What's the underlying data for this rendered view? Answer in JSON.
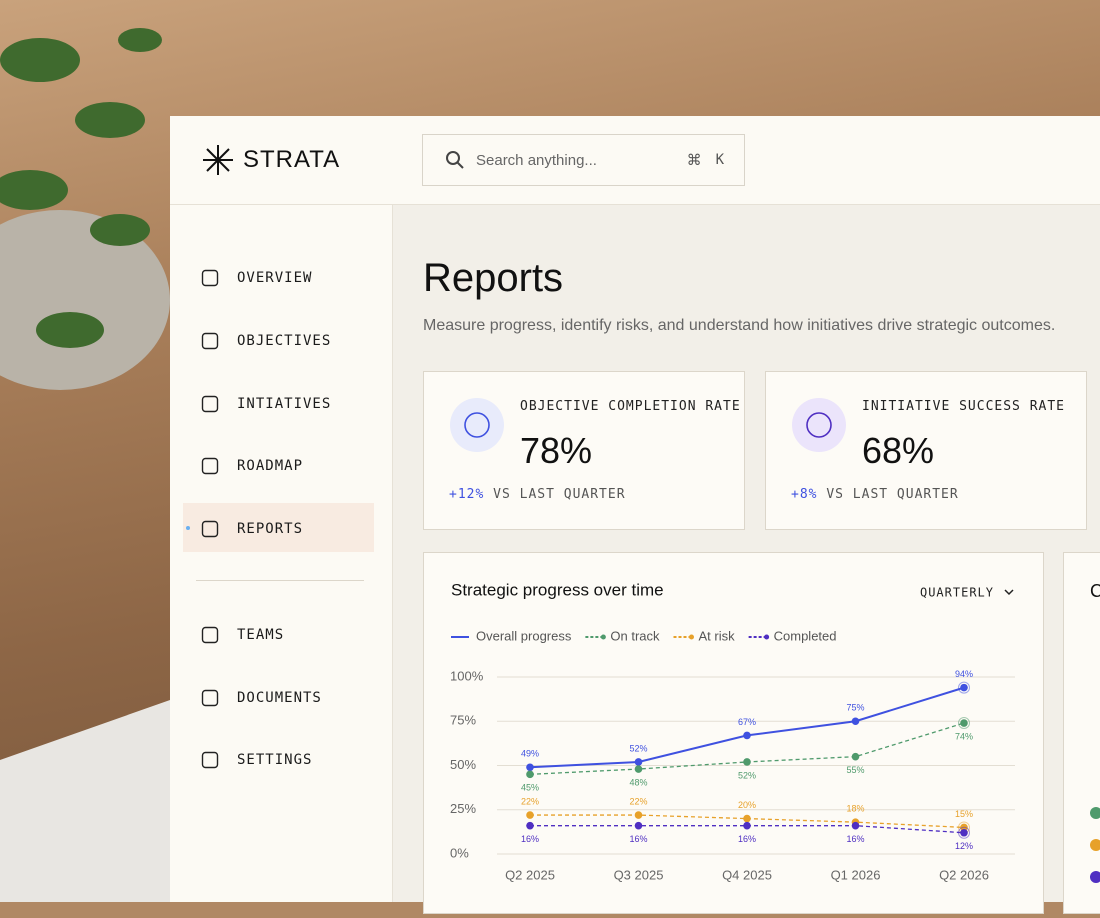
{
  "brand": "STRATA",
  "search": {
    "placeholder": "Search anything...",
    "shortcut_symbol": "⌘",
    "shortcut_key": "K"
  },
  "nav": [
    "OVERVIEW",
    "OBJECTIVES",
    "INTIATIVES",
    "ROADMAP",
    "REPORTS",
    "TEAMS",
    "DOCUMENTS",
    "SETTINGS"
  ],
  "active_nav": "REPORTS",
  "header": {
    "title": "Reports",
    "subtitle": "Measure progress, identify risks, and understand how initiatives drive strategic outcomes."
  },
  "kpis": [
    {
      "label": "OBJECTIVE COMPLETION RATE",
      "value": "78%",
      "delta": "+12%",
      "delta_text": "VS LAST QUARTER"
    },
    {
      "label": "INITIATIVE SUCCESS RATE",
      "value": "68%",
      "delta": "+8%",
      "delta_text": "VS LAST QUARTER"
    }
  ],
  "partial_card": {
    "title": "C"
  },
  "chart_data": {
    "type": "line",
    "title": "Strategic progress over time",
    "period": "QUARTERLY",
    "categories": [
      "Q2 2025",
      "Q3 2025",
      "Q4 2025",
      "Q1 2026",
      "Q2 2026"
    ],
    "ylim": [
      0,
      100
    ],
    "yticks": [
      {
        "value": 0,
        "label": "0%"
      },
      {
        "value": 25,
        "label": "25%"
      },
      {
        "value": 50,
        "label": "50%"
      },
      {
        "value": 75,
        "label": "75%"
      },
      {
        "value": 100,
        "label": "100%"
      }
    ],
    "grid": true,
    "series": [
      {
        "name": "Overall progress",
        "color": "#3f51e0",
        "dash": false,
        "labels": "above",
        "values": [
          49,
          52,
          67,
          75,
          94
        ],
        "value_labels": [
          "49%",
          "52%",
          "67%",
          "75%",
          "94%"
        ]
      },
      {
        "name": "On track",
        "color": "#4f9a6c",
        "dash": true,
        "labels": "below",
        "values": [
          45,
          48,
          52,
          55,
          74
        ],
        "value_labels": [
          "45%",
          "48%",
          "52%",
          "55%",
          "74%"
        ]
      },
      {
        "name": "At risk",
        "color": "#e7a12a",
        "dash": true,
        "labels": "above",
        "values": [
          22,
          22,
          20,
          18,
          15
        ],
        "value_labels": [
          "22%",
          "22%",
          "20%",
          "18%",
          "15%"
        ]
      },
      {
        "name": "Completed",
        "color": "#4f2fc2",
        "dash": true,
        "labels": "below",
        "values": [
          16,
          16,
          16,
          16,
          12
        ],
        "value_labels": [
          "16%",
          "16%",
          "16%",
          "16%",
          "12%"
        ]
      }
    ]
  }
}
